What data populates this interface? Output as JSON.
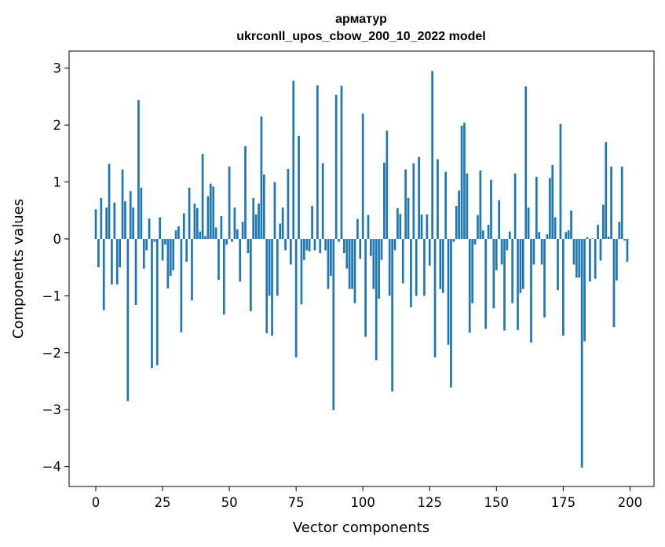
{
  "chart_data": {
    "type": "bar",
    "title": "арматур",
    "subtitle": "ukrconll_upos_cbow_200_10_2022 model",
    "xlabel": "Vector components",
    "ylabel": "Components values",
    "xlim": [
      -10,
      209
    ],
    "ylim": [
      -4.35,
      3.3
    ],
    "xticks": [
      0,
      25,
      50,
      75,
      100,
      125,
      150,
      175,
      200
    ],
    "yticks": [
      -4,
      -3,
      -2,
      -1,
      0,
      1,
      2,
      3
    ],
    "bar_color": "#1f77b4",
    "grid": false,
    "legend": "none",
    "values": [
      0.52,
      -0.5,
      0.72,
      -1.25,
      0.55,
      1.32,
      -0.8,
      0.64,
      -0.8,
      -0.5,
      1.22,
      0.66,
      -2.85,
      0.84,
      0.55,
      -1.16,
      2.44,
      0.9,
      -0.52,
      -0.2,
      0.36,
      -2.27,
      -0.05,
      -2.22,
      0.38,
      -0.38,
      -0.1,
      -0.87,
      -0.65,
      -0.55,
      0.15,
      0.22,
      -1.64,
      0.45,
      -0.4,
      0.9,
      -1.08,
      0.62,
      0.54,
      0.13,
      1.49,
      0.05,
      0.75,
      0.97,
      0.92,
      0.2,
      -0.72,
      0.4,
      -1.33,
      -0.1,
      1.27,
      -0.05,
      0.55,
      0.17,
      -0.75,
      0.3,
      1.63,
      -0.25,
      -1.27,
      0.72,
      0.43,
      0.62,
      2.15,
      1.13,
      -1.66,
      -1.0,
      -1.7,
      1.0,
      -1.0,
      0.27,
      0.55,
      -0.2,
      1.23,
      -0.45,
      2.78,
      -2.08,
      1.81,
      -1.15,
      -0.37,
      -0.2,
      -0.22,
      0.58,
      -0.2,
      2.7,
      -0.25,
      1.33,
      -0.2,
      -0.88,
      -0.65,
      -3.01,
      2.53,
      -0.05,
      2.69,
      -0.25,
      -0.52,
      -0.88,
      -0.88,
      -1.13,
      0.35,
      -0.35,
      2.2,
      -1.72,
      0.42,
      -0.3,
      -0.88,
      -2.13,
      -1.05,
      -0.37,
      1.34,
      1.9,
      -1.0,
      -2.68,
      -0.2,
      0.54,
      0.44,
      -0.78,
      1.22,
      0.72,
      -1.2,
      1.33,
      -1.0,
      1.44,
      0.43,
      -1.0,
      0.43,
      -0.47,
      2.95,
      -2.08,
      1.4,
      -0.88,
      -0.95,
      1.18,
      -1.86,
      -2.61,
      -0.05,
      0.58,
      0.85,
      1.99,
      2.04,
      1.15,
      -1.65,
      -1.13,
      -0.1,
      0.42,
      1.2,
      0.15,
      -1.58,
      0.25,
      1.04,
      -1.22,
      -0.55,
      0.68,
      -0.45,
      -1.61,
      -0.2,
      0.13,
      -1.13,
      1.15,
      -1.6,
      -0.95,
      -0.88,
      2.68,
      0.55,
      -1.82,
      -0.45,
      1.09,
      0.12,
      -0.45,
      -1.38,
      0.08,
      1.07,
      1.3,
      0.38,
      -0.9,
      2.02,
      -1.7,
      0.12,
      0.15,
      0.5,
      -0.45,
      -0.68,
      -0.68,
      -4.02,
      -1.8,
      0.03,
      -0.75,
      0.01,
      -0.7,
      0.25,
      -0.38,
      0.6,
      1.7,
      0.04,
      1.27,
      -1.55,
      -0.73,
      0.3,
      1.27,
      -0.03,
      -0.4
    ]
  }
}
